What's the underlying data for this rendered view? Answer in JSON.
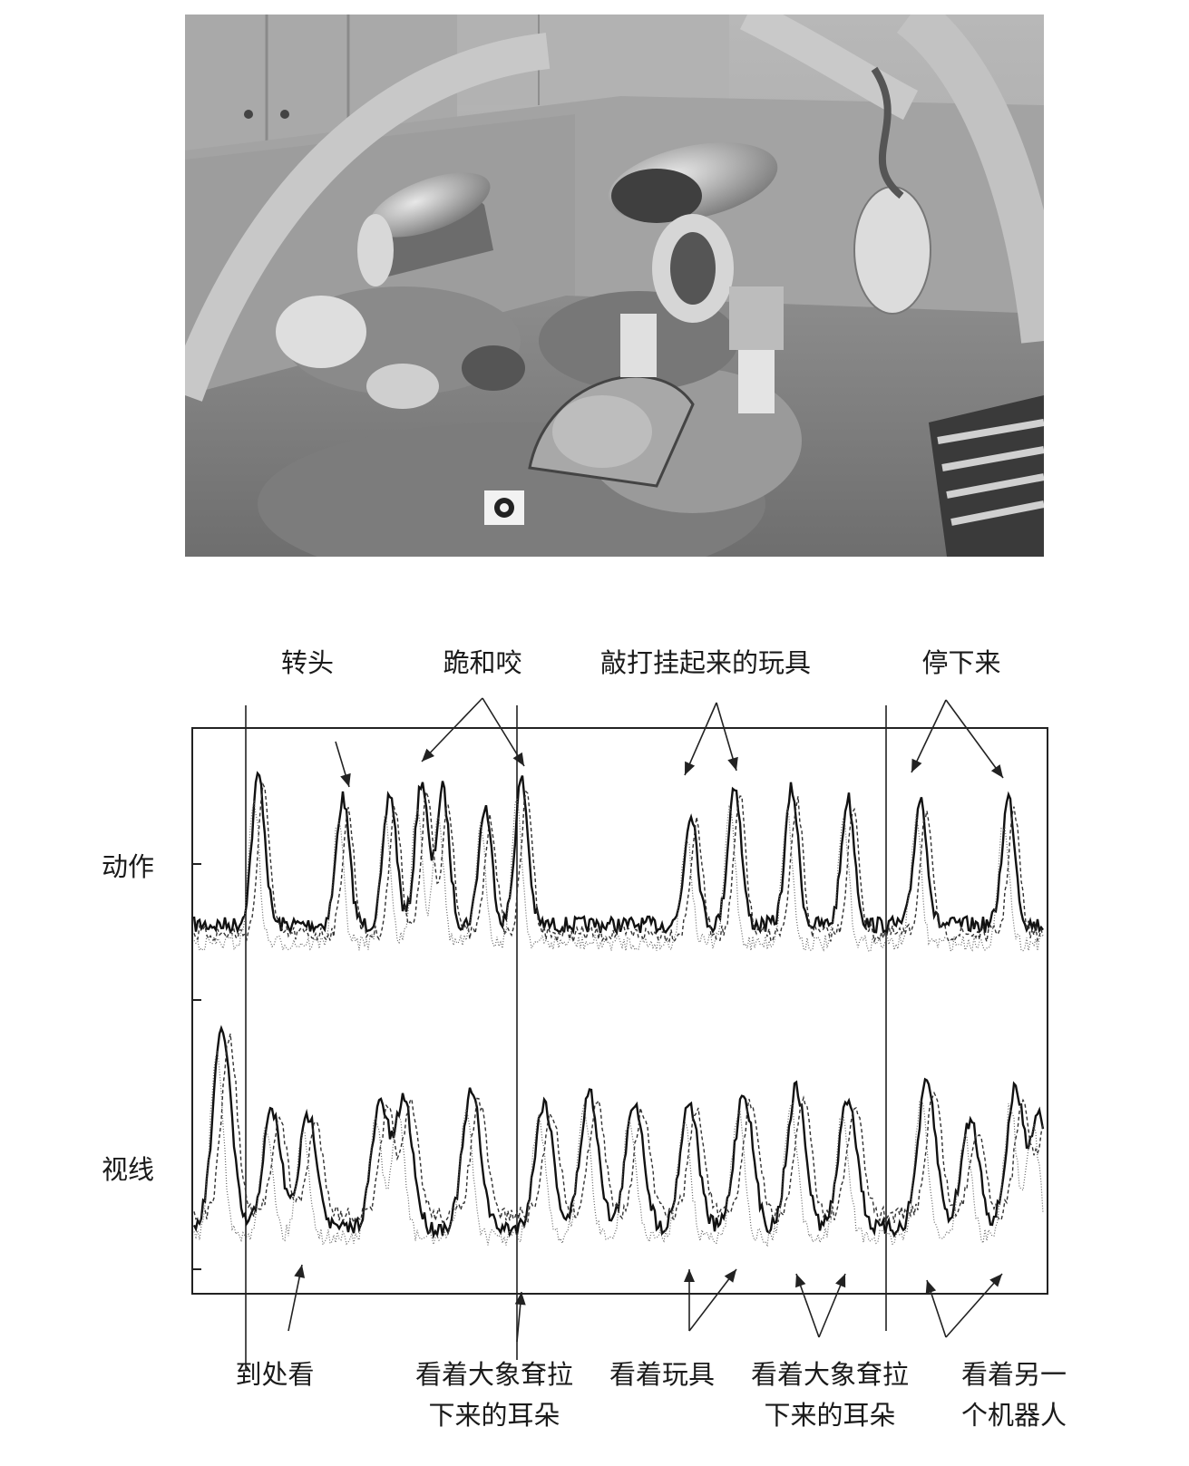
{
  "figure": {
    "photo": {
      "description_icon": "robot-dogs-photo"
    },
    "chart_data": {
      "type": "line",
      "rows": [
        {
          "label": "动作"
        },
        {
          "label": "视线"
        }
      ],
      "top_annotations": [
        {
          "text": "转头"
        },
        {
          "text": "跪和咬"
        },
        {
          "text": "敲打挂起来的玩具"
        },
        {
          "text": "停下来"
        }
      ],
      "bottom_annotations": [
        {
          "lines": [
            "到处看"
          ]
        },
        {
          "lines": [
            "看着大象耷拉",
            "下来的耳朵"
          ]
        },
        {
          "lines": [
            "看着玩具"
          ]
        },
        {
          "lines": [
            "看着大象耷拉",
            "下来的耳朵"
          ]
        },
        {
          "lines": [
            "看着另一",
            "个机器人"
          ]
        }
      ],
      "grid": false
    }
  }
}
